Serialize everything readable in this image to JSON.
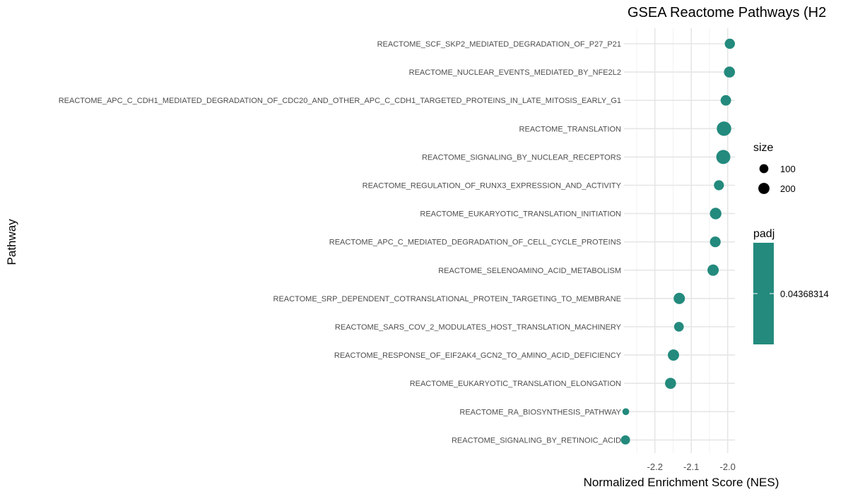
{
  "chart_data": {
    "type": "scatter",
    "title": "GSEA Reactome Pathways (H2",
    "xlabel": "Normalized Enrichment Score (NES)",
    "ylabel": "Pathway",
    "xlim": [
      -2.285,
      -1.98
    ],
    "xticks": [
      -2.2,
      -2.1,
      -2.0
    ],
    "xtick_labels": [
      "-2.2",
      "-2.1",
      "-2.0"
    ],
    "grid": true,
    "color": "#238A7D",
    "points": [
      {
        "pathway": "REACTOME_SCF_SKP2_MEDIATED_DEGRADATION_OF_P27_P21",
        "nes": -1.994,
        "size": 100
      },
      {
        "pathway": "REACTOME_NUCLEAR_EVENTS_MEDIATED_BY_NFE2L2",
        "nes": -1.995,
        "size": 130
      },
      {
        "pathway": "REACTOME_APC_C_CDH1_MEDIATED_DEGRADATION_OF_CDC20_AND_OTHER_APC_C_CDH1_TARGETED_PROTEINS_IN_LATE_MITOSIS_EARLY_G1",
        "nes": -2.005,
        "size": 110
      },
      {
        "pathway": "REACTOME_TRANSLATION",
        "nes": -2.01,
        "size": 290
      },
      {
        "pathway": "REACTOME_SIGNALING_BY_NUCLEAR_RECEPTORS",
        "nes": -2.012,
        "size": 270
      },
      {
        "pathway": "REACTOME_REGULATION_OF_RUNX3_EXPRESSION_AND_ACTIVITY",
        "nes": -2.024,
        "size": 95
      },
      {
        "pathway": "REACTOME_EUKARYOTIC_TRANSLATION_INITIATION",
        "nes": -2.033,
        "size": 150
      },
      {
        "pathway": "REACTOME_APC_C_MEDIATED_DEGRADATION_OF_CELL_CYCLE_PROTEINS",
        "nes": -2.034,
        "size": 120
      },
      {
        "pathway": "REACTOME_SELENOAMINO_ACID_METABOLISM",
        "nes": -2.04,
        "size": 140
      },
      {
        "pathway": "REACTOME_SRP_DEPENDENT_COTRANSLATIONAL_PROTEIN_TARGETING_TO_MEMBRANE",
        "nes": -2.133,
        "size": 140
      },
      {
        "pathway": "REACTOME_SARS_COV_2_MODULATES_HOST_TRANSLATION_MACHINERY",
        "nes": -2.134,
        "size": 85
      },
      {
        "pathway": "REACTOME_RESPONSE_OF_EIF2AK4_GCN2_TO_AMINO_ACID_DEFICIENCY",
        "nes": -2.149,
        "size": 140
      },
      {
        "pathway": "REACTOME_EUKARYOTIC_TRANSLATION_ELONGATION",
        "nes": -2.157,
        "size": 130
      },
      {
        "pathway": "REACTOME_RA_BIOSYNTHESIS_PATHWAY",
        "nes": -2.28,
        "size": 20
      },
      {
        "pathway": "REACTOME_SIGNALING_BY_RETINOIC_ACID",
        "nes": -2.281,
        "size": 70
      }
    ],
    "legend_size": {
      "title": "size",
      "entries": [
        {
          "label": "100",
          "size": 100
        },
        {
          "label": "200",
          "size": 200
        }
      ]
    },
    "legend_color": {
      "title": "padj",
      "label": "0.04368314",
      "color": "#238A7D"
    }
  }
}
